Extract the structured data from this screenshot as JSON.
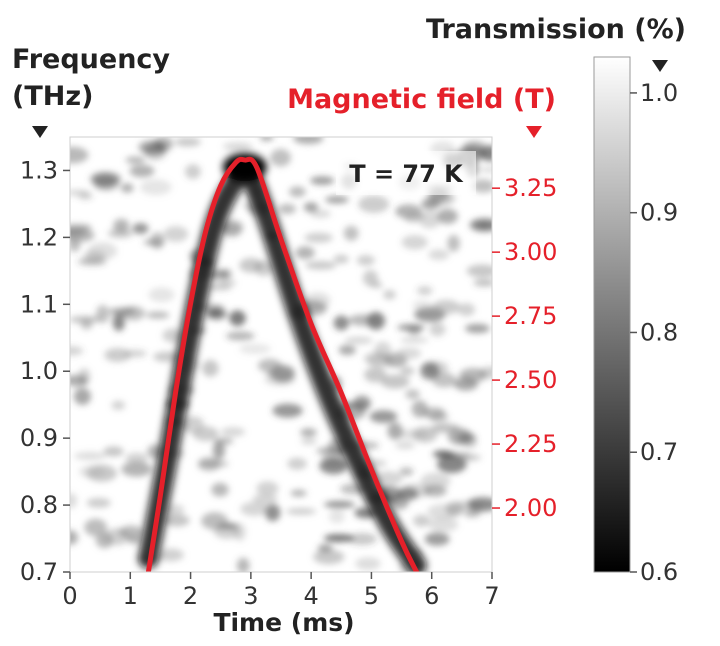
{
  "chart_data": {
    "type": "heatmap",
    "annotation": "T = 77 K",
    "x_axis": {
      "label": "Time (ms)",
      "range": [
        0,
        7
      ],
      "ticks": [
        "0",
        "1",
        "2",
        "3",
        "4",
        "5",
        "6",
        "7"
      ]
    },
    "y_axis_left": {
      "label_line1": "Frequency",
      "label_line2": "(THz)",
      "range": [
        0.7,
        1.35
      ],
      "ticks": [
        "0.7",
        "0.8",
        "0.9",
        "1.0",
        "1.1",
        "1.2",
        "1.3"
      ]
    },
    "y_axis_right": {
      "label": "Magnetic field (T)",
      "color": "#e5202a",
      "range": [
        1.75,
        3.45
      ],
      "ticks": [
        "2.00",
        "2.25",
        "2.50",
        "2.75",
        "3.00",
        "3.25"
      ]
    },
    "colorbar": {
      "label": "Transmission (%)",
      "range": [
        0.6,
        1.03
      ],
      "ticks": [
        "0.6",
        "0.7",
        "0.8",
        "0.9",
        "1.0"
      ],
      "colormap": "greys (black = 0.6, white = 1.0)"
    },
    "series": [
      {
        "curve": "magnetic field pulse",
        "color": "#e5202a",
        "x": [
          1.3,
          1.5,
          1.75,
          2.0,
          2.25,
          2.5,
          2.75,
          2.9,
          3.1,
          3.5,
          4.0,
          4.5,
          5.0,
          5.5,
          5.75
        ],
        "y": [
          1.75,
          2.05,
          2.45,
          2.8,
          3.08,
          3.26,
          3.35,
          3.36,
          3.33,
          3.05,
          2.72,
          2.45,
          2.15,
          1.87,
          1.75
        ]
      }
    ],
    "heatmap_feature": {
      "description": "dark absorption line following the field pulse",
      "x": [
        1.3,
        1.6,
        2.0,
        2.4,
        2.8,
        3.0,
        3.3,
        3.8,
        4.3,
        4.8,
        5.3,
        5.75
      ],
      "y": [
        0.72,
        0.86,
        1.06,
        1.22,
        1.29,
        1.29,
        1.22,
        1.08,
        0.96,
        0.86,
        0.77,
        0.71
      ]
    }
  }
}
